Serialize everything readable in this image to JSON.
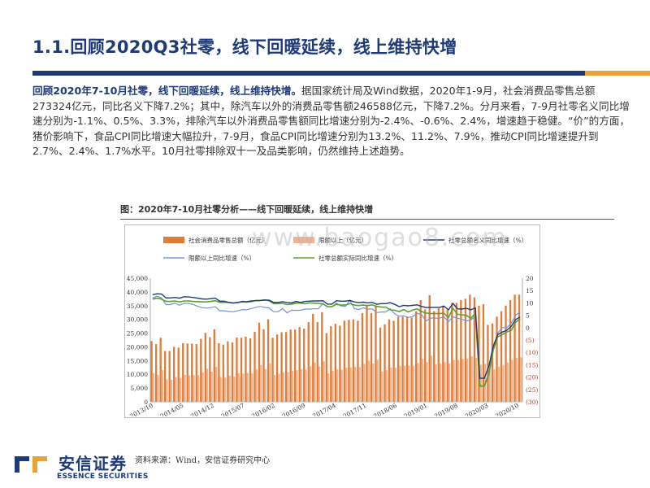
{
  "slide": {
    "title": "1.1.回顾2020Q3社零，线下回暖延续，线上维持快增",
    "paragraph_lead": "回顾2020年7-10月社零，线下回暖延续，线上维持快增。",
    "paragraph_body": "据国家统计局及Wind数据，2020年1-9月，社会消费品零售总额273324亿元，同比名义下降7.2%；其中，除汽车以外的消费品零售额246588亿元，下降7.2%。分月来看，7-9月社零名义同比增速分别为-1.1%、0.5%、3.3%，排除汽车以外消费品零售额同比增速分别为-2.4%、-0.6%、2.4%，增速趋于稳健。“价”的方面，猪价影响下，食品CPI同比增速大幅拉升，7-9月，食品CPI同比增速分别为13.2%、11.2%、7.9%，推动CPI同比增速提升到2.7%、2.4%、1.7%水平。10月社零排除双十一及品类影响，仍然维持上述趋势。",
    "figure_caption": "图：2020年7-10月社零分析——线下回暖延续，线上维持快增",
    "source": "资料来源：Wind，安信证券研究中心",
    "watermark": "www.baogao8.com",
    "logo_cn": "安信证券",
    "logo_en": "ESSENCE SECURITIES",
    "colors": {
      "navy": "#1f3a78",
      "orange": "#e8a23a",
      "bar_total": "#e07b39",
      "bar_above": "#f2b48a",
      "line_nominal": "#1f3a78",
      "line_above": "#6f95d6",
      "line_real": "#5aa02c"
    }
  },
  "chart_data": {
    "type": "bar",
    "legend": [
      "社会消费品零售总额（亿元）",
      "限额以上（亿元）",
      "社零总额名义同比增速（%）",
      "限额以上同比增速（%）",
      "社零总额实际同比增速（%）"
    ],
    "x_ticks": [
      "2013/10",
      "2014/05",
      "2014/12",
      "2015/07",
      "2016/02",
      "2016/09",
      "2017/04",
      "2017/11",
      "2018/06",
      "2019/01",
      "2019/08",
      "2020/03",
      "2020/10"
    ],
    "y_left_ticks": [
      "0",
      "5,000",
      "10,000",
      "15,000",
      "20,000",
      "25,000",
      "30,000",
      "35,000",
      "40,000",
      "45,000"
    ],
    "y_right_ticks": [
      "20",
      "15",
      "10",
      "5",
      "0",
      "(5)",
      "(10)",
      "(15)",
      "(20)",
      "(25)",
      "(30)"
    ],
    "ylim_left": [
      0,
      45000
    ],
    "ylim_right": [
      -30,
      20
    ],
    "series": [
      {
        "name": "社会消费品零售总额（亿元）",
        "axis": "left",
        "kind": "bar",
        "values": [
          22100,
          21000,
          23300,
          18500,
          18500,
          20000,
          19700,
          21300,
          21200,
          21200,
          21000,
          22900,
          25100,
          23500,
          26400,
          21300,
          20800,
          22000,
          21600,
          23400,
          23300,
          23700,
          23100,
          25500,
          28800,
          26400,
          30000,
          23300,
          24500,
          25300,
          25400,
          26300,
          26300,
          27200,
          26600,
          29000,
          32000,
          29000,
          32600,
          25000,
          27500,
          28400,
          27700,
          29500,
          29800,
          30000,
          29500,
          32300,
          35000,
          32300,
          35000,
          27000,
          28200,
          30000,
          29500,
          31000,
          31000,
          31000,
          30600,
          33000,
          37000,
          33600,
          38800,
          33000,
          34000,
          35000,
          33600,
          36000,
          36000,
          37000,
          37500,
          39000,
          38000,
          35000,
          35500,
          28000,
          28500,
          31000,
          33000,
          35000,
          37000,
          39000,
          39000
        ]
      },
      {
        "name": "限额以上（亿元）",
        "axis": "left",
        "kind": "bar",
        "values": [
          10500,
          9800,
          11500,
          8200,
          8000,
          9000,
          8700,
          9800,
          9600,
          9700,
          9700,
          10700,
          12000,
          11000,
          12700,
          9000,
          8800,
          9500,
          9200,
          10400,
          10300,
          10500,
          10300,
          11800,
          13400,
          11900,
          14000,
          9800,
          10200,
          10700,
          10800,
          11300,
          11500,
          11900,
          11700,
          13000,
          14300,
          12800,
          14700,
          10300,
          11200,
          11800,
          11600,
          12400,
          12500,
          12700,
          12600,
          13800,
          15000,
          13900,
          15300,
          11000,
          11500,
          12500,
          12400,
          13000,
          13100,
          13200,
          13000,
          14100,
          15700,
          14400,
          16800,
          13600,
          14000,
          14400,
          14000,
          15200,
          15200,
          15600,
          15800,
          16500,
          16000,
          13500,
          13800,
          11500,
          11800,
          12800,
          13400,
          14300,
          15200,
          16000,
          16200
        ]
      },
      {
        "name": "社零总额名义同比增速（%）",
        "axis": "right",
        "kind": "line",
        "values": [
          13.3,
          13.7,
          13.6,
          12.0,
          12.0,
          12.2,
          11.9,
          12.5,
          12.4,
          12.2,
          11.9,
          11.6,
          11.5,
          11.7,
          11.9,
          10.7,
          10.7,
          10.2,
          10.0,
          10.1,
          10.6,
          10.5,
          10.8,
          10.9,
          11.0,
          11.2,
          11.1,
          10.2,
          10.2,
          10.5,
          10.1,
          10.0,
          10.6,
          10.2,
          10.6,
          10.7,
          10.8,
          10.8,
          10.9,
          9.5,
          9.5,
          10.9,
          10.7,
          10.7,
          11.0,
          10.4,
          10.1,
          10.3,
          10.0,
          10.2,
          9.4,
          9.7,
          9.7,
          10.1,
          9.4,
          8.5,
          9.0,
          8.8,
          9.0,
          9.2,
          8.6,
          8.1,
          8.2,
          8.2,
          8.2,
          8.7,
          7.2,
          9.8,
          7.6,
          7.5,
          7.8,
          7.2,
          8.0,
          -20.5,
          -20.5,
          -15.8,
          -7.5,
          -2.8,
          -1.8,
          -1.1,
          0.5,
          3.3,
          4.3
        ]
      },
      {
        "name": "限额以上同比增速（%）",
        "axis": "right",
        "kind": "line",
        "values": [
          11.9,
          12.7,
          12.0,
          9.3,
          9.3,
          9.9,
          9.0,
          9.8,
          9.8,
          9.4,
          8.7,
          8.1,
          7.9,
          8.1,
          8.5,
          6.8,
          6.8,
          6.5,
          6.4,
          6.8,
          7.3,
          7.2,
          7.7,
          8.2,
          8.6,
          8.2,
          8.0,
          6.4,
          6.4,
          7.7,
          6.0,
          7.0,
          7.0,
          7.0,
          7.5,
          7.5,
          7.6,
          7.6,
          9.8,
          8.4,
          8.4,
          9.9,
          8.8,
          8.6,
          11.0,
          7.7,
          7.3,
          8.0,
          7.5,
          7.6,
          6.1,
          6.3,
          6.3,
          7.6,
          5.6,
          4.6,
          4.8,
          4.1,
          4.4,
          5.8,
          5.3,
          2.7,
          3.8,
          3.8,
          3.8,
          4.3,
          2.4,
          4.3,
          3.8,
          3.4,
          2.7,
          3.1,
          4.6,
          -23.5,
          -23.5,
          -18.4,
          -8.9,
          -2.2,
          0.0,
          0.0,
          1.8,
          5.1,
          6.3
        ]
      },
      {
        "name": "社零总额实际同比增速（%）",
        "axis": "right",
        "kind": "line",
        "values": [
          11.5,
          11.9,
          11.5,
          10.6,
          10.6,
          10.8,
          10.4,
          10.8,
          10.8,
          10.6,
          10.5,
          10.4,
          10.4,
          10.6,
          10.9,
          10.2,
          10.2,
          10.2,
          9.9,
          10.2,
          10.4,
          10.3,
          10.5,
          11.0,
          11.0,
          11.2,
          10.9,
          9.7,
          9.7,
          9.8,
          9.3,
          9.5,
          9.9,
          9.9,
          9.7,
          10.0,
          9.9,
          9.8,
          9.6,
          8.5,
          8.5,
          9.4,
          9.1,
          9.1,
          9.7,
          9.1,
          8.9,
          9.1,
          8.9,
          9.2,
          8.6,
          8.3,
          8.3,
          7.2,
          7.0,
          6.5,
          7.3,
          6.3,
          7.1,
          7.6,
          6.5,
          5.9,
          5.7,
          5.7,
          5.7,
          5.8,
          4.1,
          7.8,
          5.4,
          5.2,
          4.9,
          3.8,
          5.7,
          -23.7,
          -23.7,
          -19.0,
          -9.1,
          -3.7,
          -2.8,
          -1.8,
          -1.1,
          2.2,
          3.6
        ]
      }
    ]
  }
}
